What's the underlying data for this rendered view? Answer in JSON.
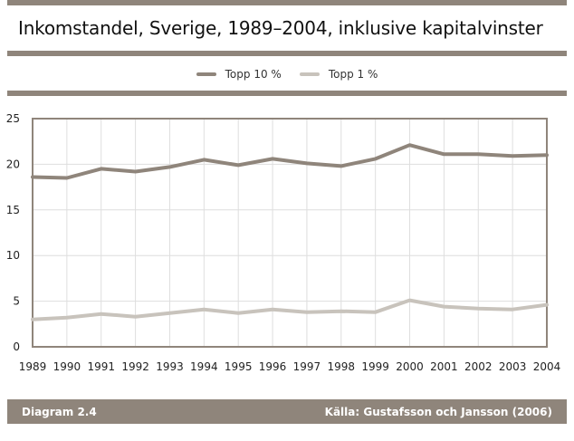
{
  "title": "Inkomstandel, Sverige, 1989–2004, inklusive kapitalvinster",
  "footer": {
    "diagram_label": "Diagram 2.4",
    "source": "Källa: Gustafsson och Jansson (2006)"
  },
  "colors": {
    "rule": "#8f857b",
    "series_top10": "#8f857b",
    "series_top1": "#c8c3bc",
    "grid": "#dedede",
    "frame": "#8f857b"
  },
  "chart_data": {
    "type": "line",
    "title": "Inkomstandel, Sverige, 1989–2004, inklusive kapitalvinster",
    "xlabel": "",
    "ylabel": "",
    "x": [
      "1989",
      "1990",
      "1991",
      "1992",
      "1993",
      "1994",
      "1995",
      "1996",
      "1997",
      "1998",
      "1999",
      "2000",
      "2001",
      "2002",
      "2003",
      "2004"
    ],
    "ylim": [
      0,
      25
    ],
    "yticks": [
      0,
      5,
      10,
      15,
      20,
      25
    ],
    "grid": "vertical and horizontal",
    "legend_position": "top-center",
    "series": [
      {
        "name": "Topp 10 %",
        "color": "#8f857b",
        "values": [
          18.6,
          18.5,
          19.5,
          19.2,
          19.7,
          20.5,
          19.9,
          20.6,
          20.1,
          19.8,
          20.6,
          22.1,
          21.1,
          21.1,
          20.9,
          21.0
        ]
      },
      {
        "name": "Topp 1 %",
        "color": "#c8c3bc",
        "values": [
          3.0,
          3.2,
          3.6,
          3.3,
          3.7,
          4.1,
          3.7,
          4.1,
          3.8,
          3.9,
          3.8,
          5.1,
          4.4,
          4.2,
          4.1,
          4.6
        ]
      }
    ]
  }
}
